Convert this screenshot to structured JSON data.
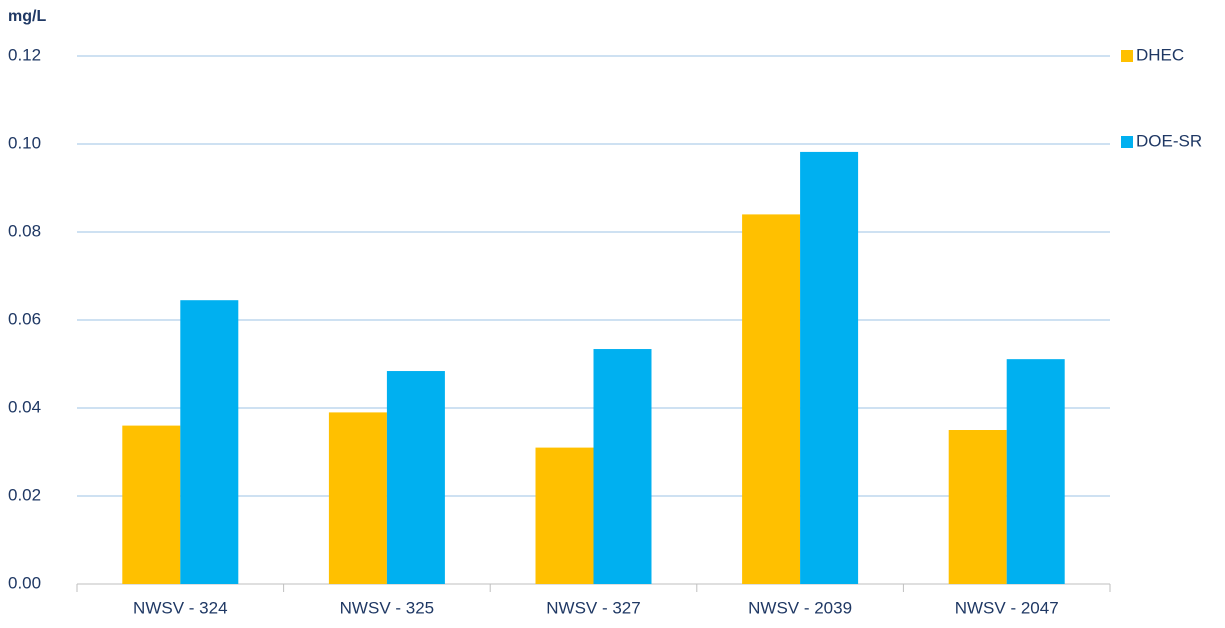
{
  "chart_data": {
    "type": "bar",
    "y_label": "mg/L",
    "categories": [
      "NWSV - 324",
      "NWSV - 325",
      "NWSV - 327",
      "NWSV - 2039",
      "NWSV - 2047"
    ],
    "series": [
      {
        "name": "DHEC",
        "color": "#FFC000",
        "values": [
          0.036,
          0.039,
          0.031,
          0.084,
          0.035
        ]
      },
      {
        "name": "DOE-SR",
        "color": "#00B0F0",
        "values": [
          0.0645,
          0.0484,
          0.0534,
          0.0982,
          0.0511
        ]
      }
    ],
    "ylim": [
      0,
      0.12
    ],
    "yticks": [
      {
        "value": 0,
        "label": "0.00"
      },
      {
        "value": 0.02,
        "label": "0.02"
      },
      {
        "value": 0.04,
        "label": "0.04"
      },
      {
        "value": 0.06,
        "label": "0.06"
      },
      {
        "value": 0.08,
        "label": "0.08"
      },
      {
        "value": 0.1,
        "label": "0.10"
      },
      {
        "value": 0.12,
        "label": "0.12"
      }
    ],
    "grid": true,
    "legend": "right"
  }
}
